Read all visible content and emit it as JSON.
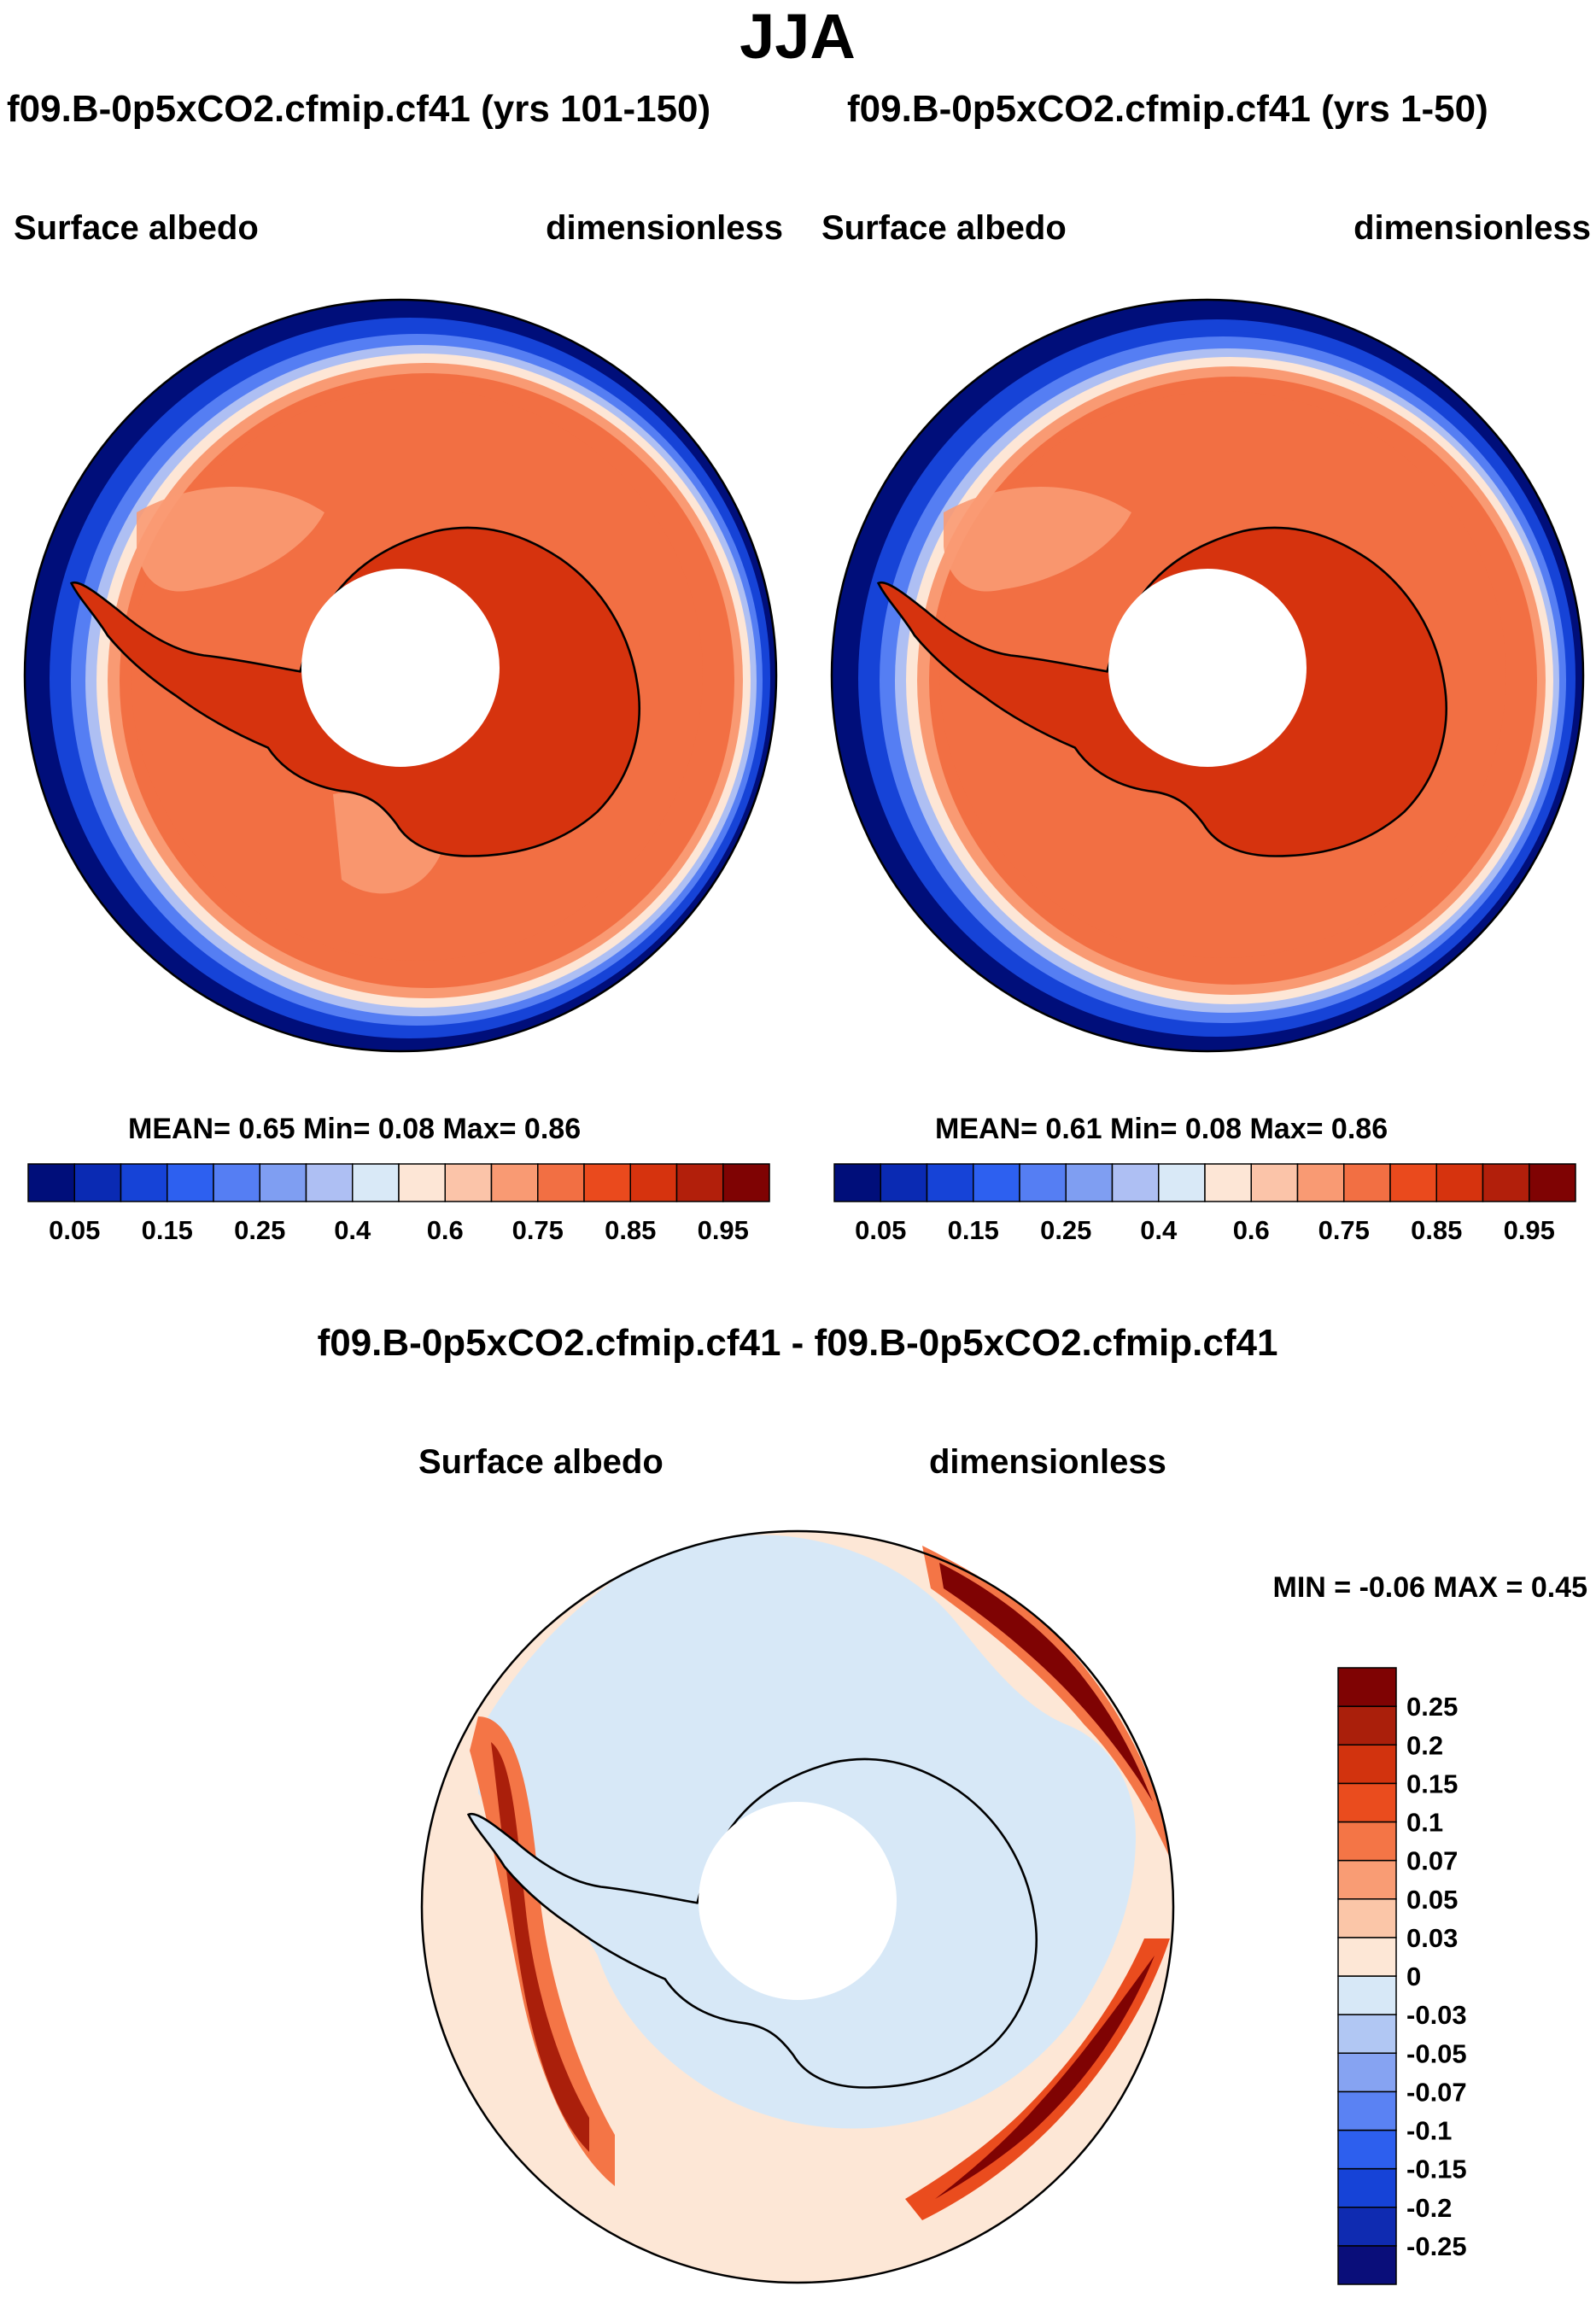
{
  "title": "JJA",
  "colors": {
    "seq": [
      "#000e7a",
      "#0a2ab3",
      "#1643d7",
      "#2d60f0",
      "#557ef3",
      "#7f9ef2",
      "#aebff3",
      "#d9e9f7",
      "#fde6d6",
      "#fbc4a9",
      "#f99a73",
      "#f26f43",
      "#ea4a1d",
      "#d6330e",
      "#b21f0b",
      "#7f0303"
    ],
    "diff": [
      "#0a0e7a",
      "#0f2bb1",
      "#1643d7",
      "#2d5fee",
      "#5a82f3",
      "#86a3f2",
      "#b1c7f3",
      "#d7e8f7",
      "#fde7d6",
      "#fbc6a8",
      "#f99c74",
      "#f47546",
      "#ea4c1e",
      "#d2330e",
      "#aa1f0b",
      "#7f0303"
    ],
    "land_line": "#000000"
  },
  "panel_left": {
    "title": "f09.B-0p5xCO2.cfmip.cf41 (yrs 101-150)",
    "label_left": "Surface albedo",
    "label_right": "dimensionless",
    "stats": "MEAN=   0.65  Min=   0.08  Max=   0.86",
    "icons": [
      "polar-projection-map"
    ]
  },
  "panel_right": {
    "title": "f09.B-0p5xCO2.cfmip.cf41 (yrs 1-50)",
    "label_left": "Surface albedo",
    "label_right": "dimensionless",
    "stats": "MEAN=   0.61  Min=   0.08  Max=   0.86"
  },
  "panel_diff": {
    "title": "f09.B-0p5xCO2.cfmip.cf41 - f09.B-0p5xCO2.cfmip.cf41",
    "label_left": "Surface albedo",
    "label_right": "dimensionless",
    "stats": "MIN =  -0.06 MAX =   0.45"
  },
  "colorbar_seq_labels": [
    "0.05",
    "0.15",
    "0.25",
    "0.4",
    "0.6",
    "0.75",
    "0.85",
    "0.95"
  ],
  "colorbar_diff_labels": [
    "0.25",
    "0.2",
    "0.15",
    "0.1",
    "0.07",
    "0.05",
    "0.03",
    "0",
    "-0.03",
    "-0.05",
    "-0.07",
    "-0.1",
    "-0.15",
    "-0.2",
    "-0.25"
  ]
}
